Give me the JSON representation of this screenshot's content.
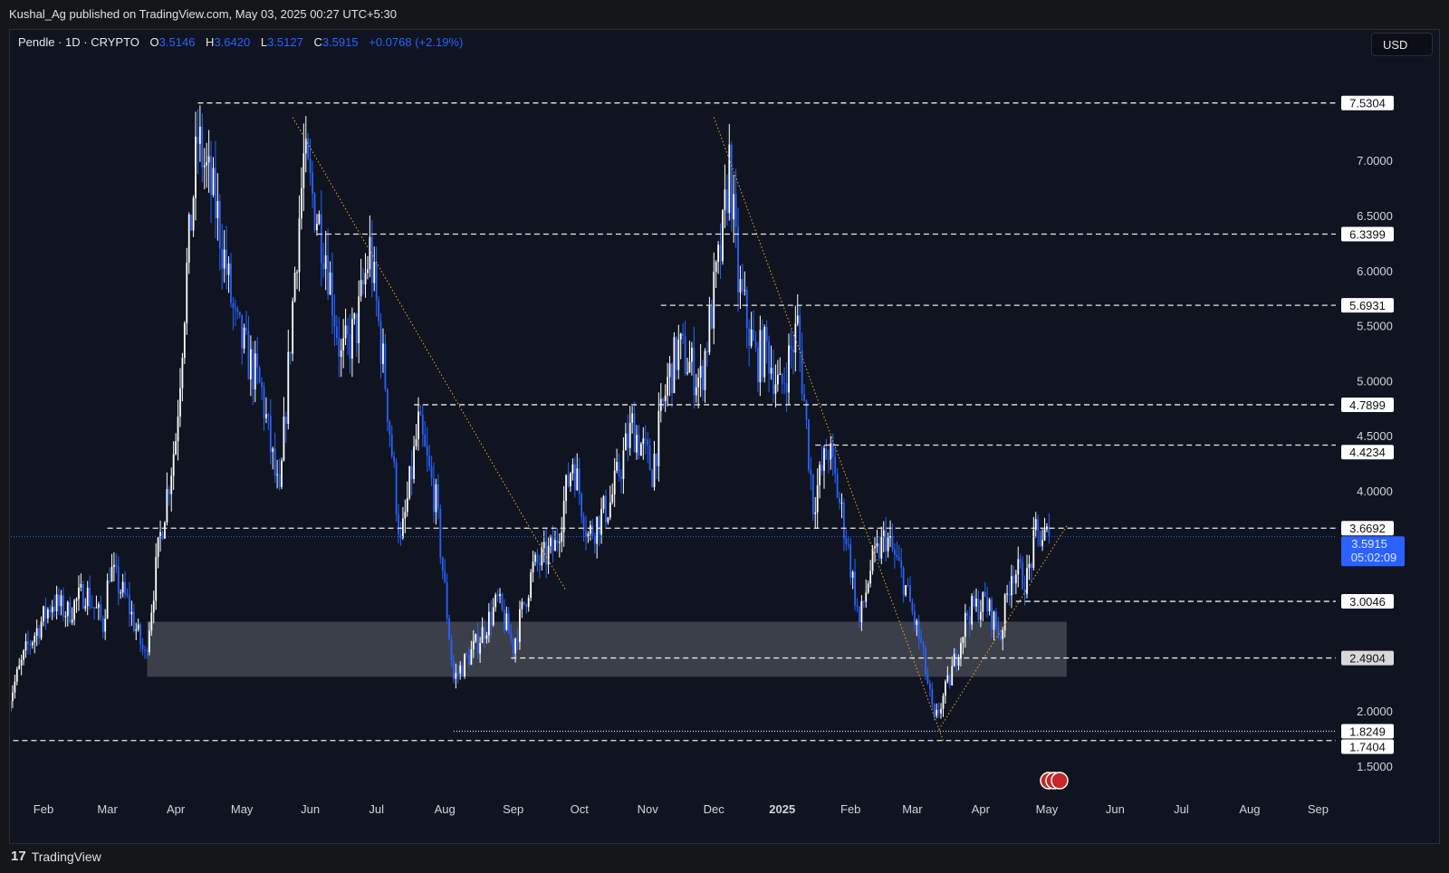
{
  "publisher_line": "Kushal_Ag published on TradingView.com, May 03, 2025 00:27 UTC+5:30",
  "legend": {
    "symbol": "Pendle · 1D · CRYPTO",
    "o_label": "O",
    "o": "3.5146",
    "h_label": "H",
    "h": "3.6420",
    "l_label": "L",
    "l": "3.5127",
    "c_label": "C",
    "c": "3.5915",
    "change": "+0.0768 (+2.19%)"
  },
  "currency_button": "USD",
  "footer_brand": "TradingView",
  "colors": {
    "up": "#ffffff",
    "down": "#2962ff",
    "accent": "#2962ff",
    "trend": "#f5a623",
    "zone": "#434651"
  },
  "chart_data": {
    "type": "candlestick",
    "title": "Pendle · 1D · CRYPTO",
    "ylim": [
      1.3,
      7.9
    ],
    "y_ticks": [
      "1.5000",
      "2.0000",
      "4.0000",
      "4.5000",
      "5.0000",
      "5.5000",
      "6.0000",
      "6.5000",
      "7.0000"
    ],
    "x_ticks": [
      {
        "label": "Feb",
        "date": "2024-02-01"
      },
      {
        "label": "Mar",
        "date": "2024-03-01"
      },
      {
        "label": "Apr",
        "date": "2024-04-01"
      },
      {
        "label": "May",
        "date": "2024-05-01"
      },
      {
        "label": "Jun",
        "date": "2024-06-01"
      },
      {
        "label": "Jul",
        "date": "2024-07-01"
      },
      {
        "label": "Aug",
        "date": "2024-08-01"
      },
      {
        "label": "Sep",
        "date": "2024-09-01"
      },
      {
        "label": "Oct",
        "date": "2024-10-01"
      },
      {
        "label": "Nov",
        "date": "2024-11-01"
      },
      {
        "label": "Dec",
        "date": "2024-12-01"
      },
      {
        "label": "2025",
        "date": "2025-01-01"
      },
      {
        "label": "Feb",
        "date": "2025-02-01"
      },
      {
        "label": "Mar",
        "date": "2025-03-01"
      },
      {
        "label": "Apr",
        "date": "2025-04-01"
      },
      {
        "label": "May",
        "date": "2025-05-01"
      },
      {
        "label": "Jun",
        "date": "2025-06-01"
      },
      {
        "label": "Jul",
        "date": "2025-07-01"
      },
      {
        "label": "Aug",
        "date": "2025-08-01"
      },
      {
        "label": "Sep",
        "date": "2025-09-01"
      }
    ],
    "close_path": [
      [
        "2024-01-16",
        2.1
      ],
      [
        "2024-01-25",
        2.6
      ],
      [
        "2024-02-05",
        3.0
      ],
      [
        "2024-02-12",
        2.9
      ],
      [
        "2024-02-20",
        3.1
      ],
      [
        "2024-02-28",
        2.8
      ],
      [
        "2024-03-02",
        3.3
      ],
      [
        "2024-03-10",
        3.0
      ],
      [
        "2024-03-18",
        2.5
      ],
      [
        "2024-03-25",
        3.6
      ],
      [
        "2024-04-01",
        4.5
      ],
      [
        "2024-04-06",
        6.0
      ],
      [
        "2024-04-11",
        7.2
      ],
      [
        "2024-04-20",
        6.5
      ],
      [
        "2024-04-28",
        5.5
      ],
      [
        "2024-05-10",
        4.9
      ],
      [
        "2024-05-18",
        3.9
      ],
      [
        "2024-05-25",
        6.0
      ],
      [
        "2024-05-29",
        7.0
      ],
      [
        "2024-06-08",
        6.2
      ],
      [
        "2024-06-15",
        5.2
      ],
      [
        "2024-06-22",
        5.5
      ],
      [
        "2024-06-28",
        6.2
      ],
      [
        "2024-07-05",
        5.0
      ],
      [
        "2024-07-12",
        3.5
      ],
      [
        "2024-07-20",
        4.6
      ],
      [
        "2024-07-28",
        3.9
      ],
      [
        "2024-08-05",
        2.3
      ],
      [
        "2024-08-15",
        2.6
      ],
      [
        "2024-08-25",
        3.0
      ],
      [
        "2024-09-01",
        2.6
      ],
      [
        "2024-09-10",
        3.3
      ],
      [
        "2024-09-20",
        3.5
      ],
      [
        "2024-09-28",
        4.3
      ],
      [
        "2024-10-05",
        3.6
      ],
      [
        "2024-10-15",
        3.9
      ],
      [
        "2024-10-25",
        4.6
      ],
      [
        "2024-11-03",
        4.2
      ],
      [
        "2024-11-10",
        5.0
      ],
      [
        "2024-11-15",
        5.3
      ],
      [
        "2024-11-25",
        5.0
      ],
      [
        "2024-12-05",
        6.3
      ],
      [
        "2024-12-08",
        7.0
      ],
      [
        "2024-12-12",
        5.9
      ],
      [
        "2024-12-20",
        5.2
      ],
      [
        "2024-12-25",
        5.3
      ],
      [
        "2024-12-31",
        4.9
      ],
      [
        "2025-01-08",
        5.5
      ],
      [
        "2025-01-15",
        3.9
      ],
      [
        "2025-01-22",
        4.4
      ],
      [
        "2025-01-30",
        3.6
      ],
      [
        "2025-02-05",
        2.8
      ],
      [
        "2025-02-10",
        3.3
      ],
      [
        "2025-02-17",
        3.6
      ],
      [
        "2025-02-25",
        3.2
      ],
      [
        "2025-03-05",
        2.6
      ],
      [
        "2025-03-11",
        1.9
      ],
      [
        "2025-03-18",
        2.3
      ],
      [
        "2025-03-26",
        2.9
      ],
      [
        "2025-04-03",
        3.0
      ],
      [
        "2025-04-10",
        2.7
      ],
      [
        "2025-04-15",
        3.3
      ],
      [
        "2025-04-22",
        3.2
      ],
      [
        "2025-04-26",
        3.6
      ],
      [
        "2025-05-02",
        3.5915
      ]
    ],
    "levels": [
      {
        "price": 7.5304,
        "label": "7.5304",
        "from": "2024-04-11",
        "style": "dashed"
      },
      {
        "price": 6.3399,
        "label": "6.3399",
        "from": "2024-06-04",
        "style": "dashed"
      },
      {
        "price": 5.6931,
        "label": "5.6931",
        "from": "2024-11-07",
        "style": "dashed"
      },
      {
        "price": 4.7899,
        "label": "4.7899",
        "from": "2024-07-18",
        "style": "dashed"
      },
      {
        "price": 4.4234,
        "label": "4.4234",
        "from": "2025-01-16",
        "style": "dashed"
      },
      {
        "price": 3.6692,
        "label": "3.6692",
        "from": "2024-03-01",
        "style": "dashed"
      },
      {
        "price": 3.0046,
        "label": "3.0046",
        "from": "2025-04-17",
        "style": "dashed"
      },
      {
        "price": 2.4904,
        "label": "2.4904",
        "from": "2024-08-31",
        "style": "dashed",
        "gray": true
      },
      {
        "price": 1.8249,
        "label": "1.8249",
        "from": "2024-08-05",
        "style": "dotted"
      },
      {
        "price": 1.7404,
        "label": "1.7404",
        "from": "2024-01-10",
        "style": "dashed"
      }
    ],
    "zone": {
      "from": "2024-03-19",
      "to": "2025-05-10",
      "low": 2.32,
      "high": 2.82
    },
    "trendlines": [
      [
        [
          "2024-05-24",
          7.4
        ],
        [
          "2024-09-25",
          3.1
        ]
      ],
      [
        [
          "2024-12-01",
          7.4
        ],
        [
          "2025-03-15",
          1.74
        ]
      ],
      [
        [
          "2025-03-13",
          1.84
        ],
        [
          "2025-05-10",
          3.69
        ]
      ]
    ],
    "last_price": {
      "price": 3.5915,
      "label": "3.5915",
      "countdown": "05:02:09"
    }
  }
}
